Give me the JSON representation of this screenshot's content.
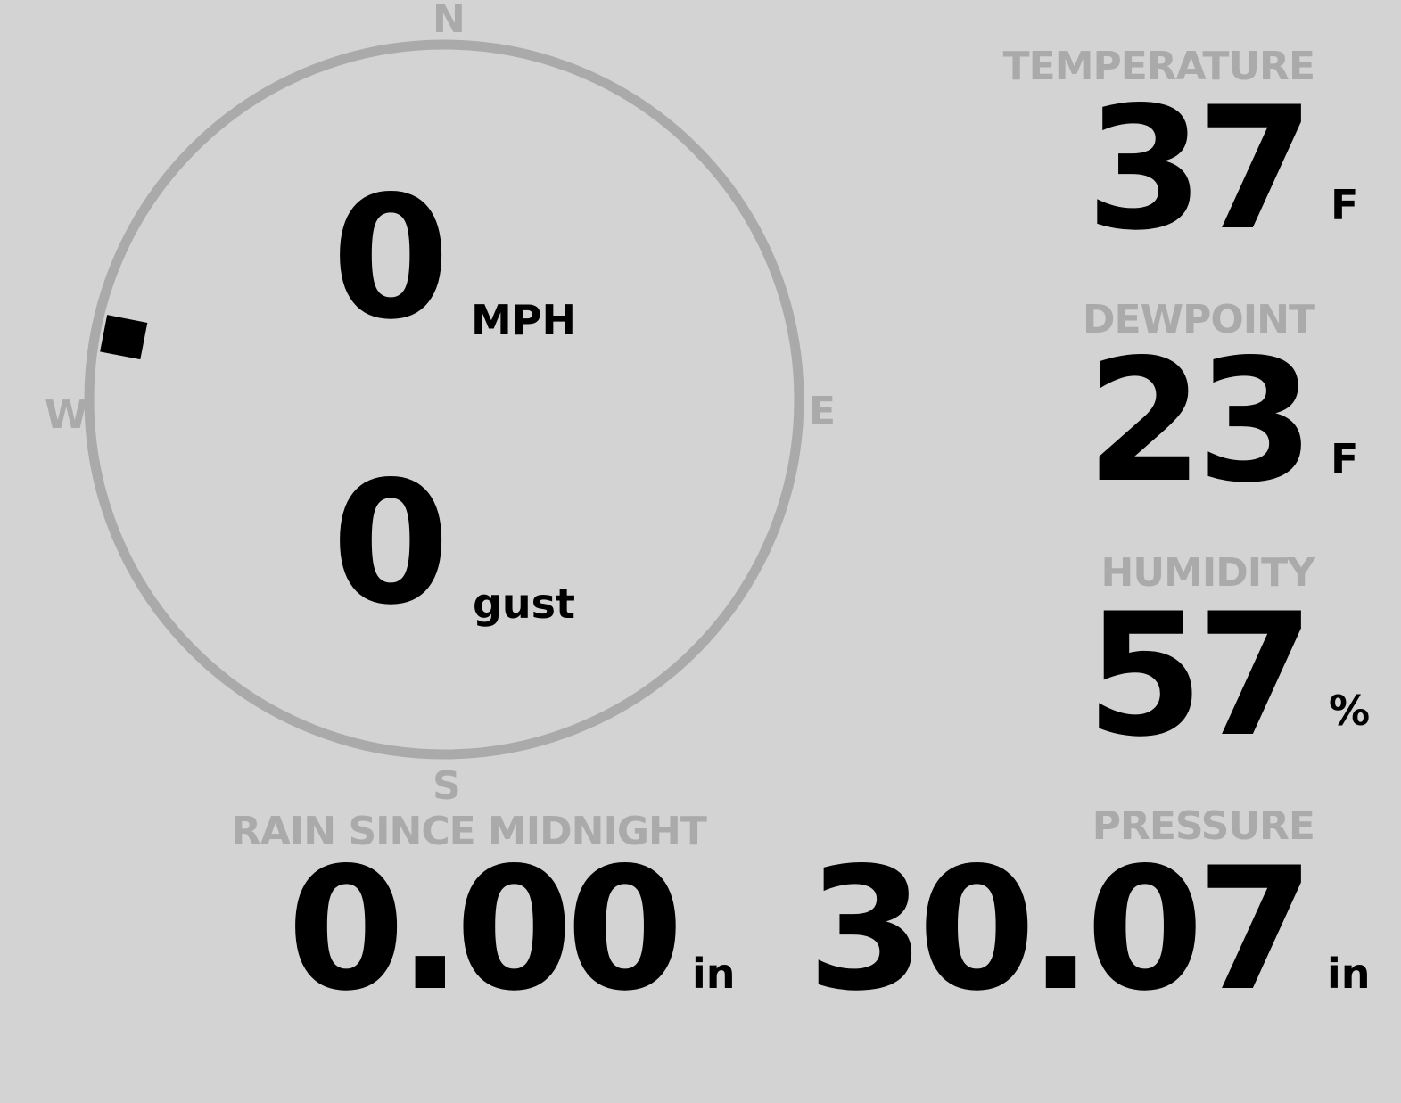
{
  "compass": {
    "north": "N",
    "south": "S",
    "east": "E",
    "west": "W",
    "wind_direction_deg": 281,
    "ring_color": "#aaaaaa",
    "marker_color": "#000000"
  },
  "wind": {
    "speed": "0",
    "speed_unit": "MPH",
    "gust": "0",
    "gust_unit": "gust"
  },
  "temperature": {
    "label": "TEMPERATURE",
    "value": "37",
    "unit": "F"
  },
  "dewpoint": {
    "label": "DEWPOINT",
    "value": "23",
    "unit": "F"
  },
  "humidity": {
    "label": "HUMIDITY",
    "value": "57",
    "unit": "%"
  },
  "pressure": {
    "label": "PRESSURE",
    "value": "30.07",
    "unit": "in"
  },
  "rain": {
    "label": "RAIN SINCE MIDNIGHT",
    "value": "0.00",
    "unit": "in"
  },
  "colors": {
    "background": "#d3d3d3",
    "label": "#aaaaaa",
    "value": "#000000"
  }
}
